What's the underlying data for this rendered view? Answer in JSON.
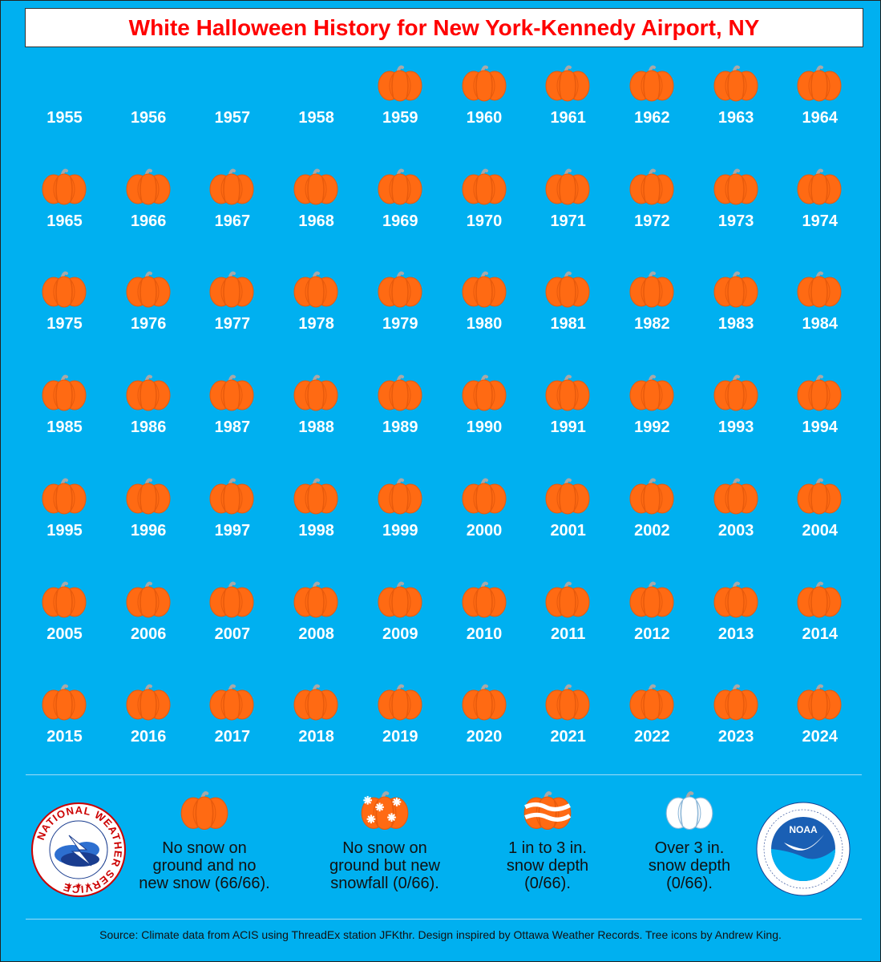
{
  "title": "White Halloween History for New York-Kennedy Airport, NY",
  "chart_data": {
    "type": "table",
    "title": "White Halloween History for New York-Kennedy Airport, NY",
    "columns": 10,
    "first_year_slot": 1955,
    "years": [
      1955,
      1956,
      1957,
      1958,
      1959,
      1960,
      1961,
      1962,
      1963,
      1964,
      1965,
      1966,
      1967,
      1968,
      1969,
      1970,
      1971,
      1972,
      1973,
      1974,
      1975,
      1976,
      1977,
      1978,
      1979,
      1980,
      1981,
      1982,
      1983,
      1984,
      1985,
      1986,
      1987,
      1988,
      1989,
      1990,
      1991,
      1992,
      1993,
      1994,
      1995,
      1996,
      1997,
      1998,
      1999,
      2000,
      2001,
      2002,
      2003,
      2004,
      2005,
      2006,
      2007,
      2008,
      2009,
      2010,
      2011,
      2012,
      2013,
      2014,
      2015,
      2016,
      2017,
      2018,
      2019,
      2020,
      2021,
      2022,
      2023,
      2024
    ],
    "data_years_start": 1959,
    "category_by_year": "all years 1959-2024: No snow on ground and no new snow",
    "categories": [
      {
        "key": "none",
        "label": "No snow on\nground and no\nnew snow (66/66).",
        "count": 66,
        "total": 66
      },
      {
        "key": "newsnow",
        "label": "No snow on\nground but new\nsnowfall (0/66).",
        "count": 0,
        "total": 66
      },
      {
        "key": "depth1to3",
        "label": "1 in to 3 in.\nsnow depth\n(0/66).",
        "count": 0,
        "total": 66
      },
      {
        "key": "over3",
        "label": "Over 3 in.\nsnow depth\n(0/66).",
        "count": 0,
        "total": 66
      }
    ]
  },
  "colors": {
    "background": "#00b0f0",
    "pumpkin": "#ff6a13",
    "pumpkin_dark": "#e85a0c",
    "stem": "#a8a8a8",
    "title": "#ff0000"
  },
  "logos": {
    "nws_text": "NATIONAL WEATHER SERVICE",
    "noaa_text": "NOAA"
  },
  "source": "Source: Climate data from ACIS using ThreadEx station JFKthr. Design inspired by Ottawa Weather Records. Tree icons by Andrew King."
}
